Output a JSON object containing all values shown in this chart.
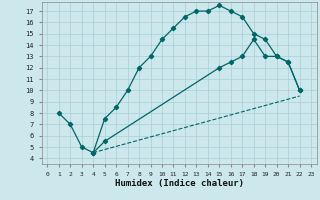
{
  "xlabel": "Humidex (Indice chaleur)",
  "bg_color": "#cce8ec",
  "line_color": "#006666",
  "grid_color": "#aacdd4",
  "xlim": [
    -0.5,
    23.5
  ],
  "ylim": [
    3.5,
    17.8
  ],
  "xticks": [
    0,
    1,
    2,
    3,
    4,
    5,
    6,
    7,
    8,
    9,
    10,
    11,
    12,
    13,
    14,
    15,
    16,
    17,
    18,
    19,
    20,
    21,
    22,
    23
  ],
  "yticks": [
    4,
    5,
    6,
    7,
    8,
    9,
    10,
    11,
    12,
    13,
    14,
    15,
    16,
    17
  ],
  "line1_x": [
    1,
    2,
    3,
    4,
    5,
    6,
    7,
    8,
    9,
    10,
    11,
    12,
    13,
    14,
    15,
    16,
    17,
    18,
    19,
    20,
    21,
    22
  ],
  "line1_y": [
    8.0,
    7.0,
    5.0,
    4.5,
    7.5,
    8.5,
    10.0,
    12.0,
    13.0,
    14.5,
    15.5,
    16.5,
    17.0,
    17.0,
    17.5,
    17.0,
    16.5,
    15.0,
    14.5,
    13.0,
    12.5,
    10.0
  ],
  "line2_x": [
    4,
    5,
    15,
    16,
    17,
    18,
    19,
    20,
    21,
    22
  ],
  "line2_y": [
    4.5,
    5.5,
    12.0,
    12.5,
    13.0,
    14.5,
    13.0,
    13.0,
    12.5,
    10.0
  ],
  "line3_x": [
    4,
    22
  ],
  "line3_y": [
    4.5,
    9.5
  ]
}
